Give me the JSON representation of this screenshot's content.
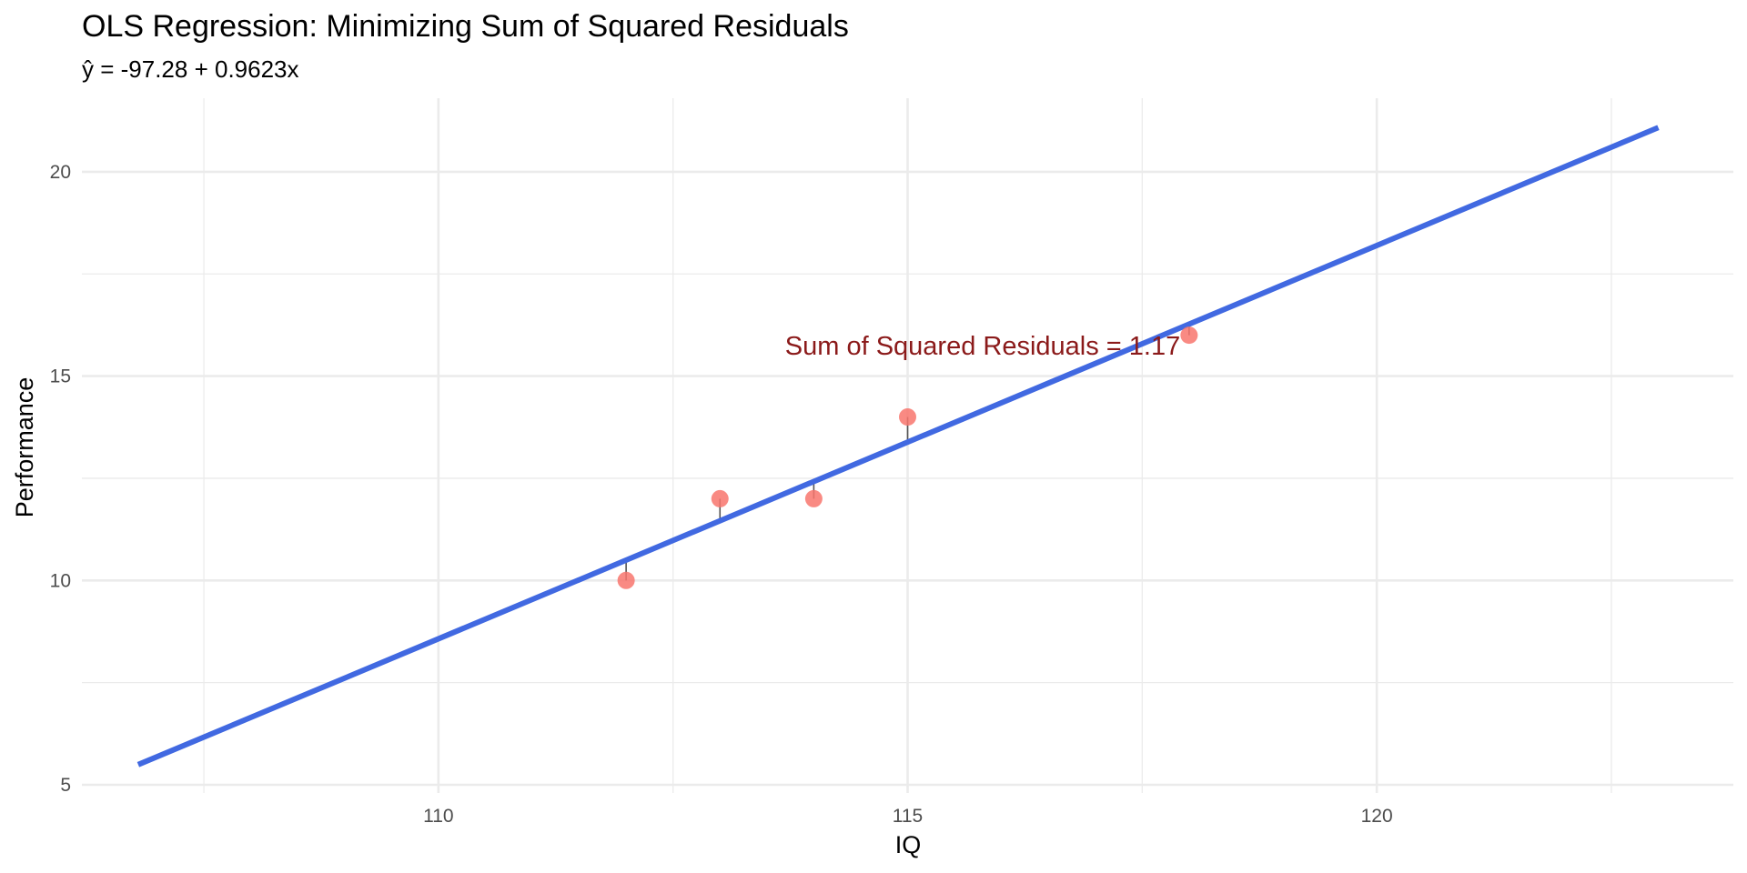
{
  "chart_data": {
    "type": "scatter",
    "title": "OLS Regression: Minimizing Sum of Squared Residuals",
    "subtitle": "ŷ = -97.28 + 0.9623x",
    "xlabel": "IQ",
    "ylabel": "Performance",
    "xlim": [
      106.2,
      123.8
    ],
    "ylim": [
      4.8,
      21.8
    ],
    "x_ticks": [
      110,
      115,
      120
    ],
    "x_tick_labels": [
      "110",
      "115",
      "120"
    ],
    "y_ticks": [
      5,
      10,
      15,
      20
    ],
    "y_tick_labels": [
      "5",
      "10",
      "15",
      "20"
    ],
    "x_minor_ticks": [
      107.5,
      112.5,
      117.5,
      122.5
    ],
    "y_minor_ticks": [
      7.5,
      12.5,
      17.5
    ],
    "grid": true,
    "points": [
      {
        "x": 112,
        "y": 10
      },
      {
        "x": 113,
        "y": 12
      },
      {
        "x": 114,
        "y": 12
      },
      {
        "x": 115,
        "y": 14
      },
      {
        "x": 118,
        "y": 16
      }
    ],
    "regression": {
      "intercept": -97.28,
      "slope": 0.9623,
      "x_start": 106.8,
      "x_end": 123.0
    },
    "annotation": {
      "text": "Sum of Squared Residuals = 1.17",
      "x": 115.8,
      "y": 15.75
    },
    "colors": {
      "points": "#f8766d",
      "line": "#4169e1",
      "residuals": "#555555",
      "annotation": "#8b1a1a",
      "grid": "#ebebeb"
    }
  }
}
